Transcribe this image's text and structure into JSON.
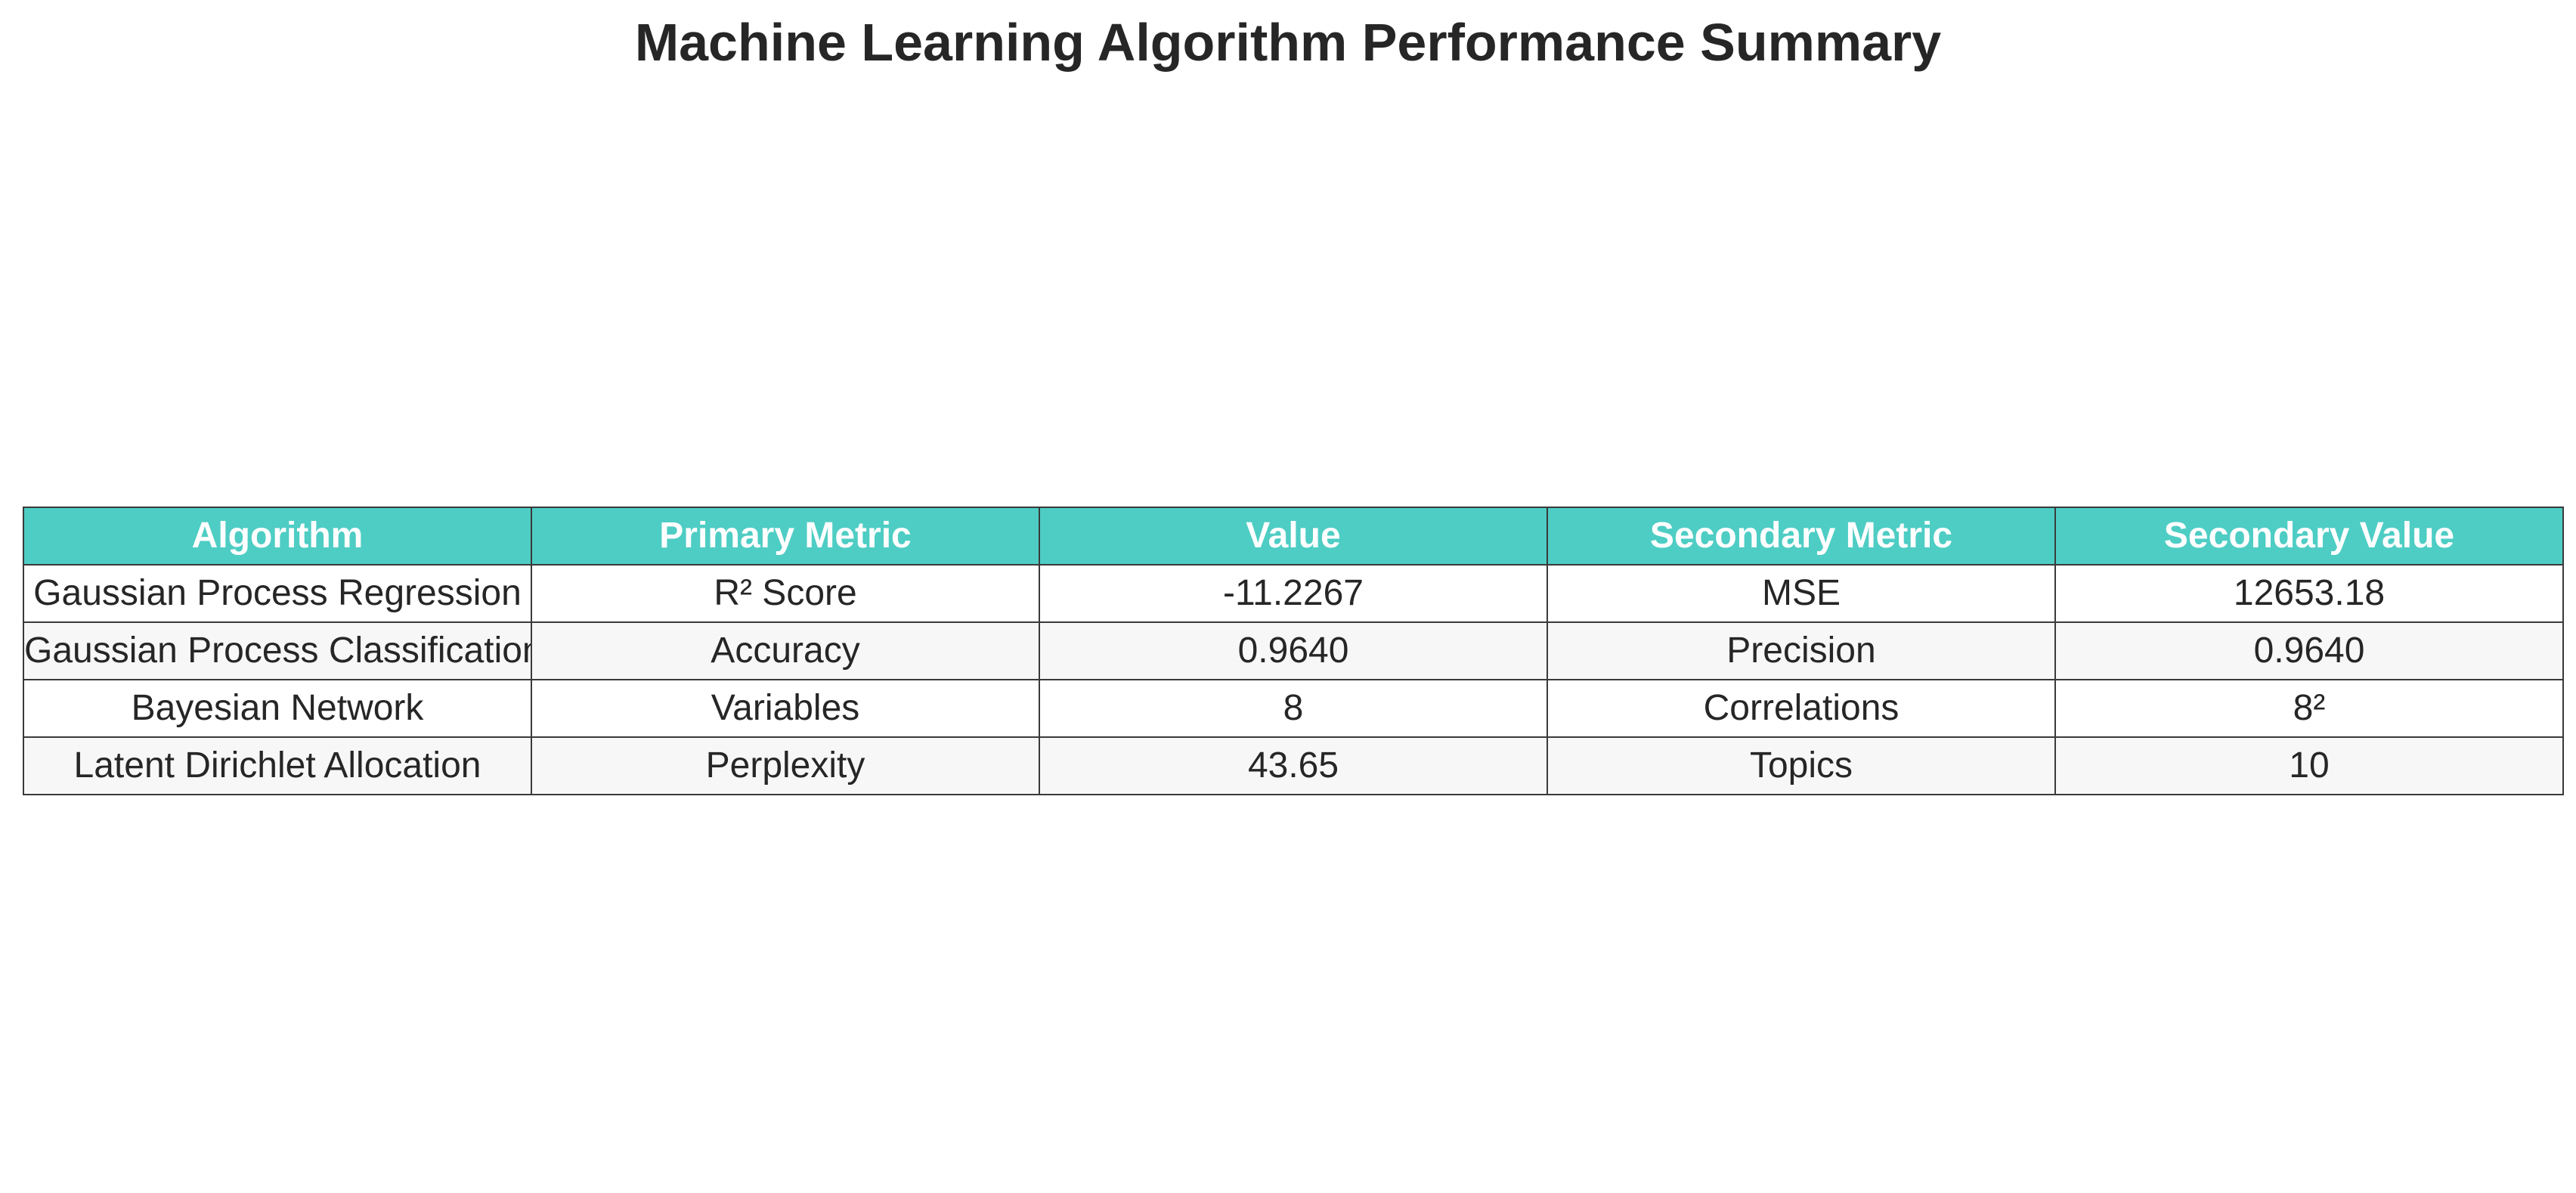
{
  "chart_data": {
    "type": "table",
    "title": "Machine Learning Algorithm Performance Summary",
    "columns": [
      "Algorithm",
      "Primary Metric",
      "Value",
      "Secondary Metric",
      "Secondary Value"
    ],
    "rows": [
      [
        "Gaussian Process Regression",
        "R² Score",
        "-11.2267",
        "MSE",
        "12653.18"
      ],
      [
        "Gaussian Process Classification",
        "Accuracy",
        "0.9640",
        "Precision",
        "0.9640"
      ],
      [
        "Bayesian Network",
        "Variables",
        "8",
        "Correlations",
        "8²"
      ],
      [
        "Latent Dirichlet Allocation",
        "Perplexity",
        "43.65",
        "Topics",
        "10"
      ]
    ],
    "colors": {
      "header_background": "#4ecdc4",
      "header_text": "#ffffff",
      "row_background": "#ffffff",
      "row_alt_background": "#f7f7f7",
      "border": "#3a3a3a"
    }
  }
}
